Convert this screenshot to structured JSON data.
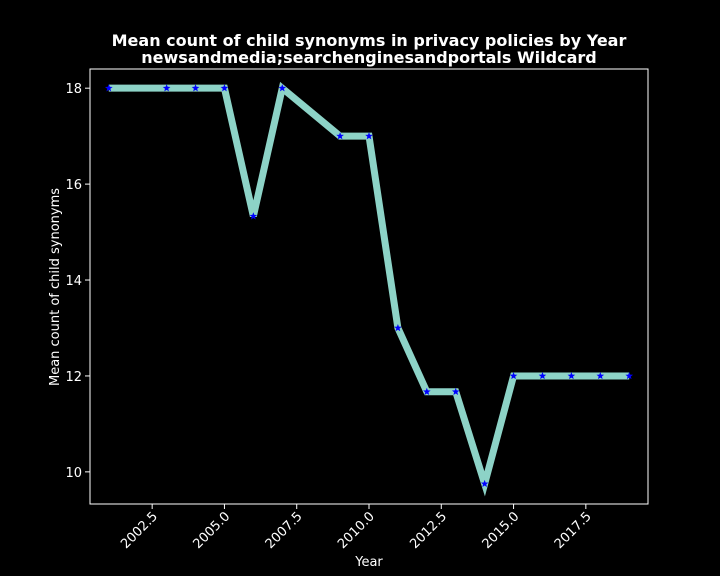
{
  "chart_data": {
    "type": "line",
    "title": "Mean count of child synonyms in privacy policies by Year",
    "subtitle": "newsandmedia;searchenginesandportals Wildcard",
    "xlabel": "Year",
    "ylabel": "Mean count of child synonyms",
    "xlim": [
      2000.35,
      2019.65
    ],
    "ylim": [
      9.33,
      18.4
    ],
    "xticks": [
      2002.5,
      2005.0,
      2007.5,
      2010.0,
      2012.5,
      2015.0,
      2017.5
    ],
    "xtick_labels": [
      "2002.5",
      "2005.0",
      "2007.5",
      "2010.0",
      "2012.5",
      "2015.0",
      "2017.5"
    ],
    "yticks": [
      10,
      12,
      14,
      16,
      18
    ],
    "ytick_labels": [
      "10",
      "12",
      "14",
      "16",
      "18"
    ],
    "grid": false,
    "background": "#000000",
    "line_color": "#8dd3c7",
    "marker_color": "#0000ff",
    "marker": "star",
    "series": [
      {
        "x": [
          2001,
          2003,
          2004,
          2005,
          2006,
          2007,
          2009,
          2010,
          2011,
          2012,
          2013,
          2014,
          2015,
          2016,
          2017,
          2018,
          2019
        ],
        "y": [
          18,
          18,
          18,
          18,
          15.33,
          18,
          17,
          17,
          13,
          11.67,
          11.67,
          9.75,
          12,
          12,
          12,
          12,
          12
        ]
      }
    ]
  }
}
